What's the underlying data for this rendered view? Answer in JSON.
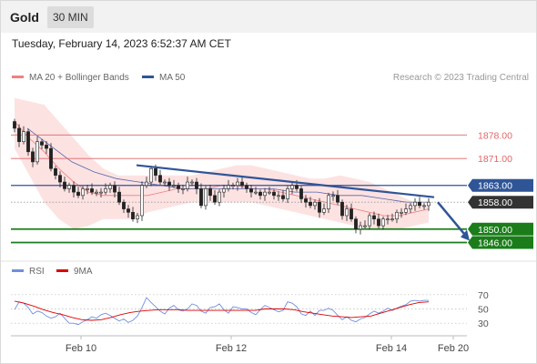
{
  "header": {
    "symbol": "Gold",
    "timeframe": "30 MIN"
  },
  "timestamp": "Tuesday, February 14, 2023 6:52:37 AM CET",
  "legend": {
    "items": [
      {
        "label": "MA 20 + Bollinger Bands",
        "color": "#f08080"
      },
      {
        "label": "MA 50",
        "color": "#2f5597"
      }
    ],
    "copyright": "Research © 2023 Trading Central"
  },
  "rsi_legend": {
    "items": [
      {
        "label": "RSI",
        "color": "#6f8fdc"
      },
      {
        "label": "9MA",
        "color": "#dd0000"
      }
    ]
  },
  "colors": {
    "candle_up": "#ffffff",
    "candle_down": "#222222",
    "resistance": "#e06666",
    "pivot": "#2f5597",
    "support": "#1a7d1a",
    "last_price": "#333333",
    "bollinger_fill": "#fde2e2",
    "trendline": "#2f5597"
  },
  "chart_data": [
    {
      "type": "candlestick",
      "x_tick_labels": [
        "Feb 10",
        "Feb 12",
        "Feb 14",
        "Feb 20"
      ],
      "ylim": [
        1841,
        1890
      ],
      "levels": [
        {
          "value": 1878.0,
          "label": "1878.00",
          "kind": "resistance"
        },
        {
          "value": 1871.0,
          "label": "1871.00",
          "kind": "resistance"
        },
        {
          "value": 1863.0,
          "label": "1863.00",
          "kind": "pivot"
        },
        {
          "value": 1858.0,
          "label": "1858.00",
          "kind": "last"
        },
        {
          "value": 1850.0,
          "label": "1850.00",
          "kind": "support"
        },
        {
          "value": 1846.0,
          "label": "1846.00",
          "kind": "support"
        }
      ],
      "close_values": [
        1880.0,
        1876.0,
        1879.0,
        1873.0,
        1870.0,
        1876.0,
        1875.0,
        1874.0,
        1868.0,
        1866.0,
        1864.0,
        1862.0,
        1863.0,
        1861.0,
        1860.0,
        1862.0,
        1862.0,
        1861.0,
        1861.0,
        1861.0,
        1862.0,
        1863.0,
        1861.0,
        1858.0,
        1856.0,
        1855.0,
        1853.0,
        1854.0,
        1863.0,
        1864.0,
        1868.0,
        1866.0,
        1864.0,
        1864.0,
        1863.0,
        1863.0,
        1862.0,
        1862.0,
        1864.0,
        1864.0,
        1862.0,
        1857.0,
        1862.0,
        1860.0,
        1858.0,
        1861.0,
        1862.0,
        1863.0,
        1863.0,
        1864.0,
        1863.0,
        1862.0,
        1861.0,
        1861.0,
        1860.0,
        1861.0,
        1861.0,
        1860.0,
        1860.0,
        1859.0,
        1862.0,
        1863.0,
        1862.0,
        1859.0,
        1858.0,
        1857.0,
        1858.0,
        1855.0,
        1856.0,
        1860.0,
        1860.0,
        1858.0,
        1854.0,
        1856.0,
        1853.0,
        1850.0,
        1851.0,
        1851.0,
        1854.0,
        1853.0,
        1851.0,
        1853.0,
        1853.0,
        1853.0,
        1855.0,
        1855.0,
        1856.0,
        1857.0,
        1858.0,
        1857.0,
        1857.0,
        1858.0
      ],
      "bollinger_upper": [
        1889.0,
        1888.0,
        1887.0,
        1882.0,
        1877.0,
        1872.0,
        1868.0,
        1866.0,
        1866.0,
        1866.0,
        1866.0,
        1866.0,
        1866.0,
        1867.0,
        1868.0,
        1869.0,
        1869.0,
        1868.0,
        1867.0,
        1866.0,
        1865.0,
        1865.0,
        1866.0,
        1865.0,
        1864.0,
        1862.0,
        1860.0,
        1858.0,
        1857.0
      ],
      "bollinger_lower": [
        1874.0,
        1866.0,
        1858.0,
        1853.0,
        1850.0,
        1851.0,
        1853.0,
        1853.0,
        1853.0,
        1855.0,
        1856.0,
        1857.0,
        1858.0,
        1858.0,
        1858.0,
        1858.0,
        1858.0,
        1857.0,
        1856.0,
        1855.0,
        1854.0,
        1853.0,
        1852.0,
        1851.0,
        1850.0,
        1850.0,
        1850.0,
        1851.0,
        1852.0
      ],
      "ma20": [
        1882.0,
        1877.0,
        1873.0,
        1868.0,
        1864.0,
        1861.0,
        1860.0,
        1860.0,
        1860.0,
        1860.0,
        1861.0,
        1862.0,
        1862.0,
        1862.0,
        1863.0,
        1863.0,
        1862.0,
        1862.0,
        1861.0,
        1860.0,
        1859.0,
        1858.0,
        1857.0,
        1856.0,
        1855.0,
        1854.0,
        1854.0,
        1855.0,
        1856.0
      ],
      "ma50": [
        1880.0,
        1875.0,
        1870.0,
        1867.0,
        1865.0,
        1864.0,
        1863.0,
        1862.0,
        1862.0,
        1862.0,
        1862.0,
        1862.0,
        1861.0,
        1861.0,
        1860.0,
        1860.0,
        1859.0,
        1858.0,
        1858.0
      ],
      "trendline": [
        1869.0,
        1859.5
      ],
      "projection": [
        1858.0,
        1846.0
      ]
    },
    {
      "type": "line",
      "ylim": [
        20,
        80
      ],
      "y_tick_labels": [
        "70",
        "50",
        "30"
      ],
      "series": [
        {
          "name": "RSI",
          "values": [
            49,
            60,
            58,
            52,
            43,
            47,
            45,
            40,
            37,
            39,
            44,
            37,
            30,
            30,
            28,
            32,
            35,
            39,
            37,
            42,
            44,
            41,
            37,
            33,
            36,
            31,
            34,
            40,
            52,
            66,
            59,
            53,
            47,
            43,
            51,
            55,
            49,
            47,
            50,
            57,
            55,
            47,
            44,
            52,
            53,
            57,
            49,
            44,
            53,
            52,
            50,
            50,
            45,
            42,
            49,
            55,
            52,
            49,
            46,
            48,
            60,
            58,
            53,
            43,
            41,
            47,
            41,
            48,
            48,
            51,
            48,
            41,
            35,
            39,
            34,
            32,
            36,
            38,
            43,
            47,
            44,
            47,
            51,
            48,
            51,
            54,
            56,
            61,
            62,
            61,
            62,
            62
          ]
        },
        {
          "name": "9MA",
          "values": [
            61,
            58,
            54,
            49,
            45,
            42,
            38,
            35,
            34,
            35,
            38,
            42,
            45,
            47,
            48,
            49,
            49,
            49,
            48,
            48,
            48,
            48,
            48,
            48,
            48,
            48,
            50,
            50,
            50,
            49,
            46,
            44,
            42,
            40,
            39,
            38,
            39,
            40,
            44,
            48,
            52,
            56,
            59,
            60
          ]
        }
      ]
    }
  ]
}
